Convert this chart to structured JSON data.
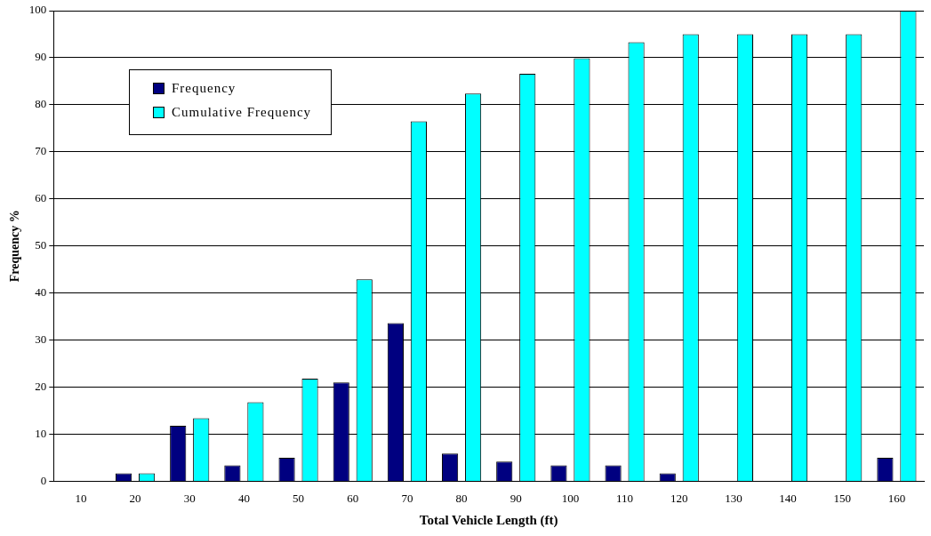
{
  "chart_data": {
    "type": "bar",
    "xlabel": "Total Vehicle Length (ft)",
    "ylabel": "Frequency %",
    "categories": [
      "10",
      "20",
      "30",
      "40",
      "50",
      "60",
      "70",
      "80",
      "90",
      "100",
      "110",
      "120",
      "130",
      "140",
      "150",
      "160"
    ],
    "series": [
      {
        "name": "Frequency",
        "color": "#000080",
        "values": [
          0,
          1.7,
          11.8,
          3.4,
          5,
          21,
          33.6,
          5.9,
          4.2,
          3.4,
          3.4,
          1.7,
          0,
          0,
          0,
          5
        ]
      },
      {
        "name": "Cumulative Frequency",
        "color": "#00ffff",
        "values": [
          0,
          1.7,
          13.4,
          16.8,
          21.8,
          42.9,
          76.5,
          82.4,
          86.6,
          89.9,
          93.3,
          95,
          95,
          95,
          95,
          100
        ]
      }
    ],
    "ylim": [
      0,
      100
    ],
    "yticks": [
      0,
      10,
      20,
      30,
      40,
      50,
      60,
      70,
      80,
      90,
      100
    ],
    "grid": "y",
    "legend": "top left"
  }
}
